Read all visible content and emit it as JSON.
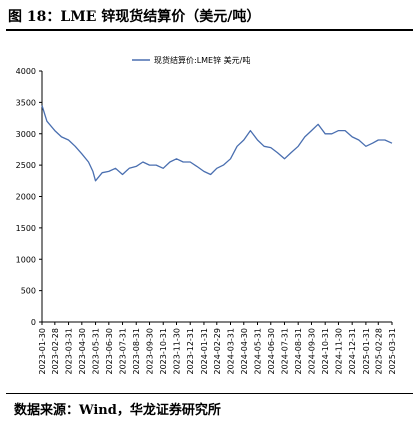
{
  "figure": {
    "title": "图 18：LME 锌现货结算价（美元/吨）",
    "source": "数据来源：Wind，华龙证券研究所"
  },
  "chart_data": {
    "type": "line",
    "title": "图 18：LME 锌现货结算价（美元/吨）",
    "xlabel": "",
    "ylabel": "",
    "ylim": [
      0,
      4000
    ],
    "yticks": [
      "0",
      "500",
      "1000",
      "1500",
      "2000",
      "2500",
      "3000",
      "3500",
      "4000"
    ],
    "xticks": [
      "2023-01-30",
      "2023-02-28",
      "2023-03-31",
      "2023-04-30",
      "2023-05-31",
      "2023-06-30",
      "2023-07-31",
      "2023-08-31",
      "2023-09-30",
      "2023-10-31",
      "2023-11-30",
      "2023-12-31",
      "2024-01-31",
      "2024-02-29",
      "2024-03-31",
      "2024-04-30",
      "2024-05-31",
      "2024-06-30",
      "2024-07-31",
      "2024-08-31",
      "2024-09-30",
      "2024-10-31",
      "2024-11-30",
      "2024-12-31",
      "2025-01-31",
      "2025-02-28",
      "2025-03-31"
    ],
    "grid": false,
    "legend_position": "top",
    "series": [
      {
        "name": "现货结算价:LME锌  美元/吨",
        "color": "#4a6fb0",
        "x": [
          "2023-01-30",
          "2023-02-10",
          "2023-02-28",
          "2023-03-15",
          "2023-03-31",
          "2023-04-15",
          "2023-04-30",
          "2023-05-15",
          "2023-05-25",
          "2023-05-31",
          "2023-06-15",
          "2023-06-30",
          "2023-07-15",
          "2023-07-31",
          "2023-08-15",
          "2023-08-31",
          "2023-09-15",
          "2023-09-30",
          "2023-10-15",
          "2023-10-31",
          "2023-11-15",
          "2023-11-30",
          "2023-12-15",
          "2023-12-31",
          "2024-01-15",
          "2024-01-31",
          "2024-02-15",
          "2024-02-29",
          "2024-03-15",
          "2024-03-31",
          "2024-04-15",
          "2024-04-30",
          "2024-05-15",
          "2024-05-31",
          "2024-06-15",
          "2024-06-30",
          "2024-07-15",
          "2024-07-31",
          "2024-08-15",
          "2024-08-31",
          "2024-09-15",
          "2024-09-30",
          "2024-10-15",
          "2024-10-31",
          "2024-11-15",
          "2024-11-30",
          "2024-12-15",
          "2024-12-31",
          "2025-01-15",
          "2025-01-31",
          "2025-02-15",
          "2025-02-28",
          "2025-03-15",
          "2025-03-31"
        ],
        "values": [
          3450,
          3200,
          3050,
          2950,
          2900,
          2800,
          2680,
          2550,
          2400,
          2250,
          2380,
          2400,
          2450,
          2350,
          2450,
          2480,
          2550,
          2500,
          2500,
          2450,
          2550,
          2600,
          2550,
          2550,
          2480,
          2400,
          2350,
          2450,
          2500,
          2600,
          2800,
          2900,
          3050,
          2900,
          2800,
          2780,
          2700,
          2600,
          2700,
          2800,
          2950,
          3050,
          3150,
          3000,
          3000,
          3050,
          3050,
          2950,
          2900,
          2800,
          2850,
          2900,
          2900,
          2850
        ]
      }
    ]
  }
}
